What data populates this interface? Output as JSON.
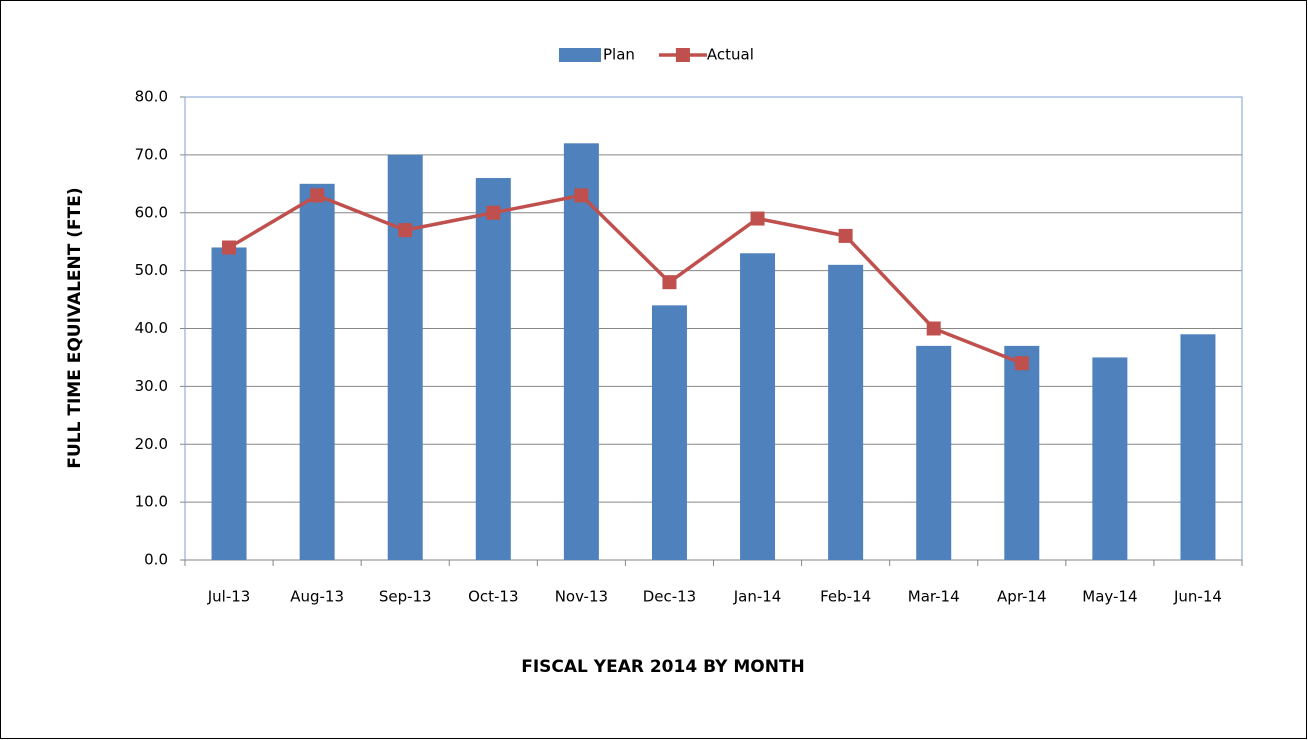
{
  "chart_data": {
    "type": "bar",
    "x_label": "FISCAL YEAR 2014 BY MONTH",
    "y_label": "FULL TIME EQUIVALENT (FTE)",
    "categories": [
      "Jul-13",
      "Aug-13",
      "Sep-13",
      "Oct-13",
      "Nov-13",
      "Dec-13",
      "Jan-14",
      "Feb-14",
      "Mar-14",
      "Apr-14",
      "May-14",
      "Jun-14"
    ],
    "series": [
      {
        "name": "Plan",
        "type": "bar",
        "color": "#4f81bd",
        "values": [
          54,
          65,
          70,
          66,
          72,
          44,
          53,
          51,
          37,
          37,
          35,
          39
        ]
      },
      {
        "name": "Actual",
        "type": "line",
        "color": "#c0504d",
        "values": [
          54,
          63,
          57,
          60,
          63,
          48,
          59,
          56,
          40,
          34,
          null,
          null
        ]
      }
    ],
    "ylim": [
      0,
      80
    ],
    "yticks": [
      {
        "value": 0,
        "label": "0.0"
      },
      {
        "value": 10,
        "label": "10.0"
      },
      {
        "value": 20,
        "label": "20.0"
      },
      {
        "value": 30,
        "label": "30.0"
      },
      {
        "value": 40,
        "label": "40.0"
      },
      {
        "value": 50,
        "label": "50.0"
      },
      {
        "value": 60,
        "label": "60.0"
      },
      {
        "value": 70,
        "label": "70.0"
      },
      {
        "value": 80,
        "label": "80.0"
      }
    ],
    "grid": true,
    "legend": "top"
  }
}
